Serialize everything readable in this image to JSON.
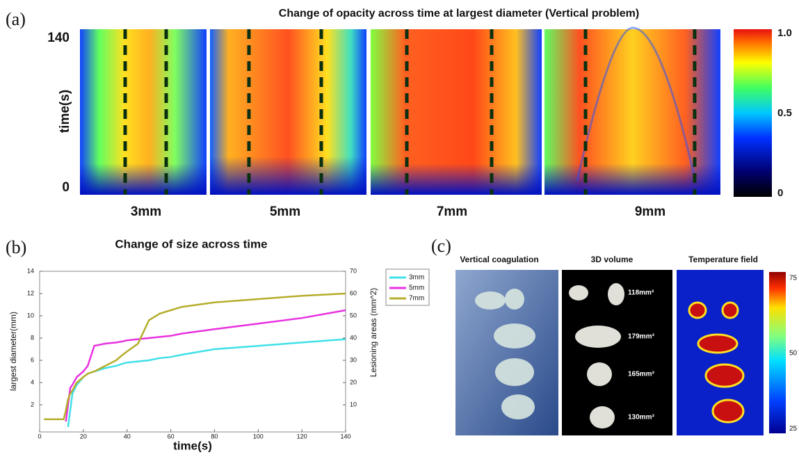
{
  "panel_labels": [
    "(a)",
    "(b)",
    "(c)"
  ],
  "chart_data": [
    {
      "type": "heatmap",
      "title": "Change of opacity across time at largest diameter (Vertical problem)",
      "y_label": "time(s)",
      "ylim": [
        0,
        140
      ],
      "yticks": [
        0,
        140
      ],
      "panels": [
        "3mm",
        "5mm",
        "7mm",
        "9mm"
      ],
      "colorbar_lim": [
        0,
        1
      ],
      "colorbar_ticks": [
        0,
        0.5,
        {
          "value": 1,
          "label": "1.0"
        }
      ]
    },
    {
      "type": "line",
      "title": "Change of size across time",
      "x_label": "time(s)",
      "y_label": "largest diameter(mm)",
      "y2_label": "Lesioning areas (mm^2)",
      "xlim": [
        0,
        140
      ],
      "xticks": [
        0,
        20,
        40,
        60,
        80,
        100,
        120,
        140
      ],
      "ylim": [
        0,
        14
      ],
      "yticks": [
        2,
        4,
        6,
        8,
        10,
        12,
        14
      ],
      "y2lim": [
        0,
        70
      ],
      "y2ticks": [
        10,
        20,
        30,
        40,
        50,
        60,
        70
      ],
      "x": [
        2,
        11,
        12,
        13,
        14,
        15,
        17,
        20,
        22,
        25,
        30,
        35,
        38,
        40,
        45,
        50,
        55,
        60,
        65,
        80,
        100,
        120,
        140
      ],
      "series": [
        {
          "name": "3mm",
          "color": "#3fe0e8",
          "values": [
            null,
            null,
            null,
            0,
            1.5,
            3,
            3.8,
            4.5,
            4.8,
            5,
            5.3,
            5.5,
            5.7,
            5.8,
            5.9,
            6,
            6.2,
            6.3,
            6.5,
            7,
            7.3,
            7.6,
            7.9
          ]
        },
        {
          "name": "5mm",
          "color": "#e830e0",
          "values": [
            null,
            null,
            0.5,
            2,
            3.5,
            3.8,
            4.5,
            5,
            5.5,
            7.3,
            7.5,
            7.6,
            7.7,
            7.8,
            7.9,
            8,
            8.1,
            8.2,
            8.4,
            8.8,
            9.3,
            9.8,
            10.5
          ]
        },
        {
          "name": "7mm",
          "color": "#b5ad2a",
          "values": [
            0.7,
            0.7,
            1.5,
            2.5,
            3,
            3.3,
            4,
            4.5,
            4.8,
            5,
            5.5,
            6,
            6.5,
            6.8,
            7.5,
            9.6,
            10.2,
            10.5,
            10.8,
            11.2,
            11.5,
            11.8,
            12
          ]
        }
      ],
      "legend": "outside right"
    }
  ],
  "photo_panel": {
    "titles": [
      "Vertical coagulation",
      "3D volume",
      "Temperature field"
    ],
    "volume_labels": [
      "118mm³",
      "179mm³",
      "165mm³",
      "130mm³"
    ],
    "colorbar_lim": [
      23.5,
      77
    ],
    "colorbar_ticks": [
      25,
      50,
      75
    ]
  }
}
